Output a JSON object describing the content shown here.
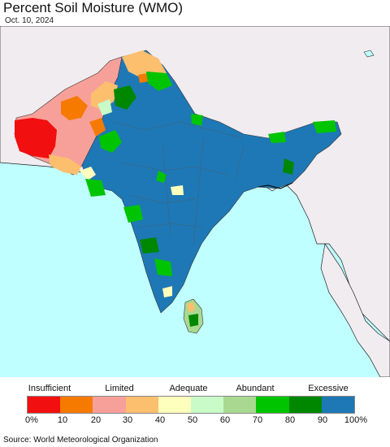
{
  "title": "Percent Soil Moisture (WMO)",
  "date": "Oct. 10, 2024",
  "legend": {
    "categories": [
      "Insufficient",
      "Limited",
      "Adequate",
      "Abundant",
      "Excessive"
    ],
    "ticks": [
      "0%",
      "10",
      "20",
      "30",
      "40",
      "50",
      "60",
      "70",
      "80",
      "90",
      "100%"
    ],
    "colors": [
      "#f20f10",
      "#f77a00",
      "#f7a09a",
      "#fbbf6e",
      "#feffbc",
      "#c8fbc8",
      "#a9d990",
      "#00c400",
      "#008700",
      "#1e78b5"
    ]
  },
  "map_colors": {
    "ocean": "#bfffff",
    "land_outside": "#f0ecf0",
    "excessive": "#1e78b5",
    "borders": "#111111"
  },
  "source": "Source: World Meteorological Organization"
}
